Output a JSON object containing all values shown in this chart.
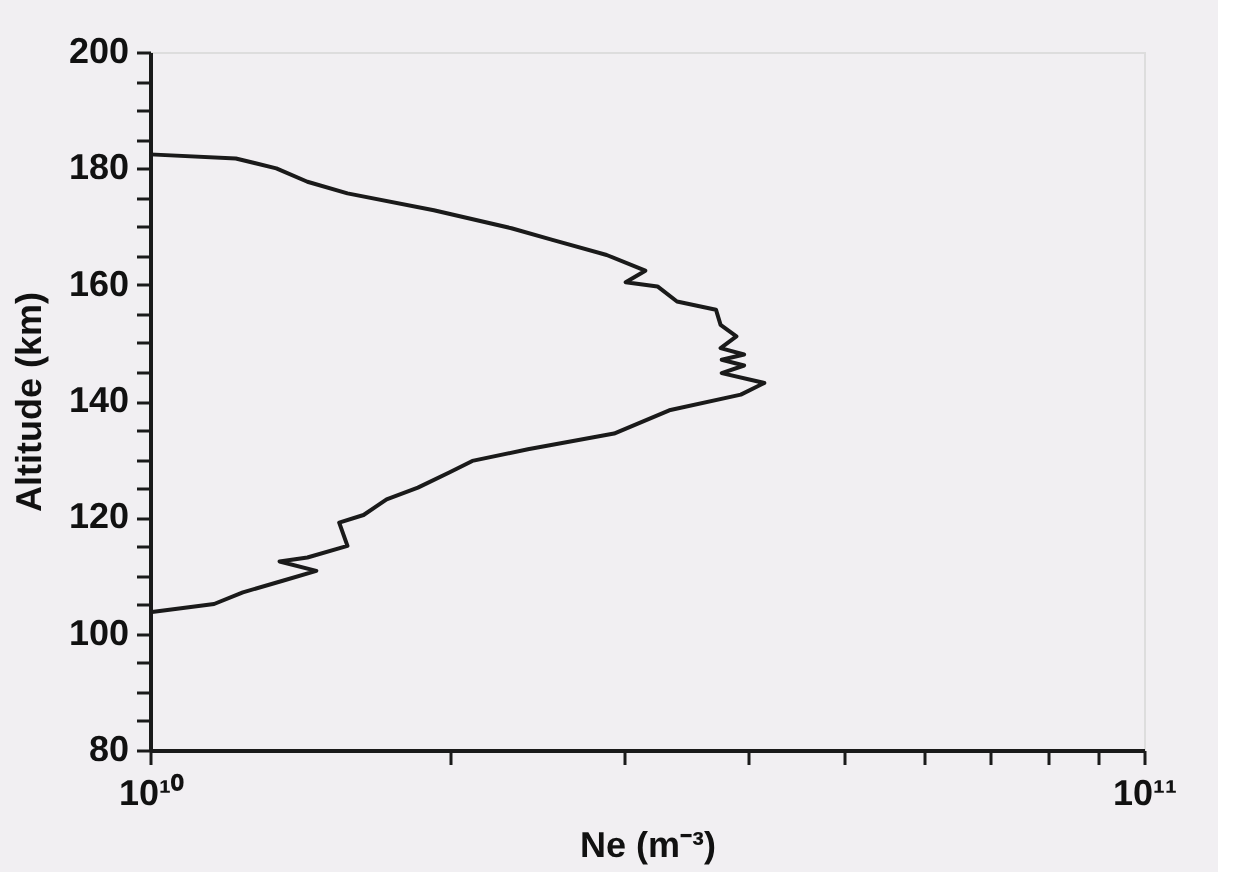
{
  "chart_data": {
    "type": "line",
    "xlabel": "Ne (m⁻³)",
    "ylabel": "Altitude (km)",
    "log": "x",
    "grid": false,
    "marker": "none",
    "line_style": "solid",
    "xlim": [
      10000000000.0,
      100000000000.0
    ],
    "xticks": [
      {
        "value": 10000000000.0,
        "label": "10¹⁰"
      },
      {
        "value": 20000000000.0,
        "label": null
      },
      {
        "value": 30000000000.0,
        "label": null
      },
      {
        "value": 40000000000.0,
        "label": null
      },
      {
        "value": 50000000000.0,
        "label": null
      },
      {
        "value": 60000000000.0,
        "label": null
      },
      {
        "value": 70000000000.0,
        "label": null
      },
      {
        "value": 80000000000.0,
        "label": null
      },
      {
        "value": 90000000000.0,
        "label": null
      },
      {
        "value": 100000000000.0,
        "label": "10¹¹"
      }
    ],
    "ylim": [
      80,
      200
    ],
    "yticks": [
      80,
      {
        "value": 85,
        "label": null
      },
      {
        "value": 90,
        "label": null
      },
      {
        "value": 95,
        "label": null
      },
      100,
      {
        "value": 105,
        "label": null
      },
      {
        "value": 110,
        "label": null
      },
      {
        "value": 115,
        "label": null
      },
      120,
      {
        "value": 125,
        "label": null
      },
      {
        "value": 130,
        "label": null
      },
      {
        "value": 135,
        "label": null
      },
      140,
      {
        "value": 145,
        "label": null
      },
      {
        "value": 150,
        "label": null
      },
      {
        "value": 155,
        "label": null
      },
      160,
      {
        "value": 165,
        "label": null
      },
      {
        "value": 170,
        "label": null
      },
      {
        "value": 175,
        "label": null
      },
      180,
      {
        "value": 185,
        "label": null
      },
      {
        "value": 190,
        "label": null
      },
      {
        "value": 195,
        "label": null
      },
      200
    ],
    "series": [
      {
        "color": "#1a1a1a",
        "x": [
          10000000000.0,
          12200000000.0,
          13400000000.0,
          14400000000.0,
          15800000000.0,
          19300000000.0,
          23100000000.0,
          25400000000.0,
          28800000000.0,
          31500000000.0,
          30100000000.0,
          32400000000.0,
          33900000000.0,
          37100000000.0,
          37500000000.0,
          38900000000.0,
          37500000000.0,
          39600000000.0,
          37600000000.0,
          39600000000.0,
          37600000000.0,
          41500000000.0,
          39300000000.0,
          33300000000.0,
          29300000000.0,
          24000000000.0,
          21100000000.0,
          20000000000.0,
          18600000000.0,
          17300000000.0,
          16400000000.0,
          15500000000.0,
          15800000000.0,
          14400000000.0,
          13500000000.0,
          14700000000.0,
          13600000000.0,
          12400000000.0,
          11600000000.0,
          10000000000.0
        ],
        "values": [
          182.4,
          181.7,
          180.0,
          177.7,
          175.7,
          172.8,
          169.7,
          167.7,
          165.1,
          162.4,
          160.4,
          159.7,
          157.1,
          155.7,
          153.1,
          151.1,
          149.1,
          148.0,
          147.1,
          146.1,
          144.8,
          143.1,
          141.1,
          138.4,
          134.4,
          131.7,
          129.7,
          127.7,
          125.1,
          123.1,
          120.4,
          119.1,
          115.1,
          113.1,
          112.4,
          110.8,
          109.1,
          107.1,
          105.1,
          103.7
        ]
      }
    ]
  }
}
